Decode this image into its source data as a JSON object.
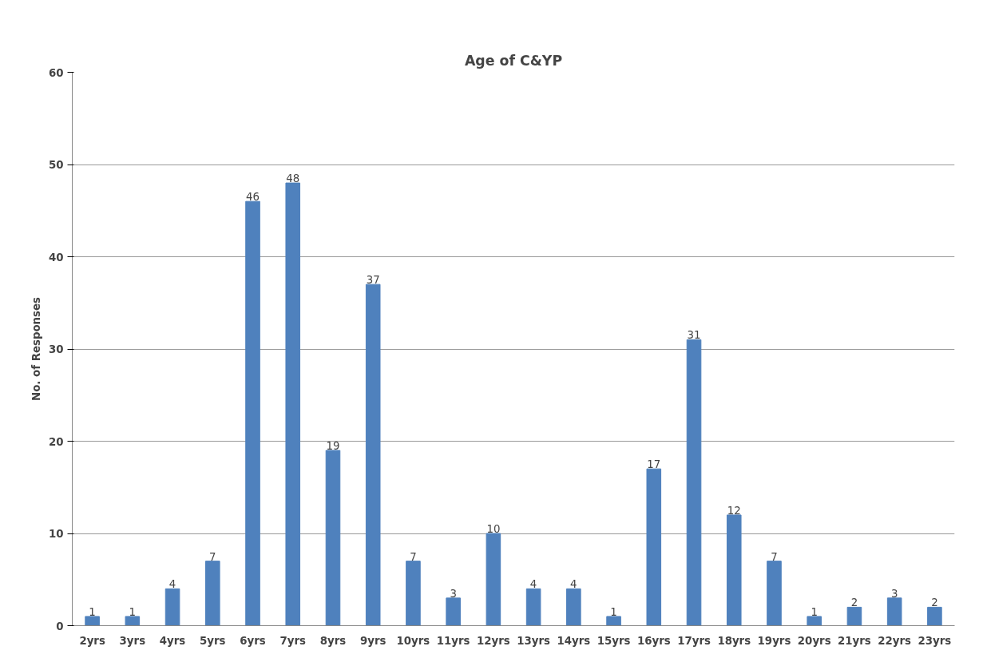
{
  "chart_data": {
    "type": "bar",
    "title": "Age of C&YP",
    "ylabel": "No. of Responses",
    "categories": [
      "2yrs",
      "3yrs",
      "4yrs",
      "5yrs",
      "6yrs",
      "7yrs",
      "8yrs",
      "9yrs",
      "10yrs",
      "11yrs",
      "12yrs",
      "13yrs",
      "14yrs",
      "15yrs",
      "16yrs",
      "17yrs",
      "18yrs",
      "19yrs",
      "20yrs",
      "21yrs",
      "22yrs",
      "23yrs"
    ],
    "values": [
      1,
      1,
      4,
      7,
      46,
      48,
      19,
      37,
      7,
      3,
      10,
      4,
      4,
      1,
      17,
      31,
      12,
      7,
      1,
      2,
      3,
      2
    ],
    "color": "#4f81bd",
    "ylim": [
      0,
      60
    ],
    "yticks": [
      0,
      10,
      20,
      30,
      40,
      50,
      60
    ],
    "grid": "y",
    "data_labels": true
  }
}
